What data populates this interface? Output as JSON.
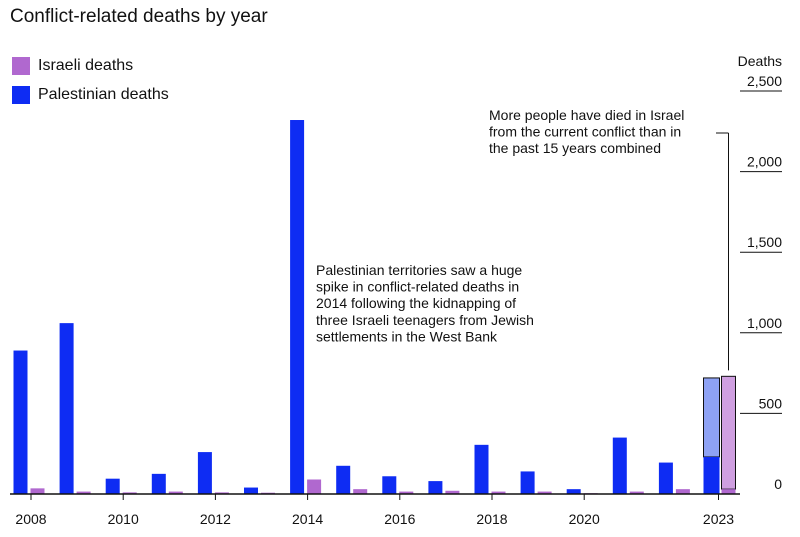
{
  "chart_data": {
    "type": "bar",
    "title": "Conflict-related deaths by year",
    "ylabel": "Deaths",
    "ylim": [
      0,
      2500
    ],
    "yticks": [
      0,
      500,
      1000,
      1500,
      2000,
      2500
    ],
    "ytick_labels": [
      "0",
      "500",
      "1,000",
      "1,500",
      "2,000",
      "2,500"
    ],
    "grid": false,
    "legend_position": "top-left",
    "categories": [
      "2008",
      "2009",
      "2010",
      "2011",
      "2012",
      "2013",
      "2014",
      "2015",
      "2016",
      "2017",
      "2018",
      "2019",
      "2020",
      "2021",
      "2022",
      "2023"
    ],
    "xtick_labels": [
      "2008",
      "2010",
      "2012",
      "2014",
      "2016",
      "2018",
      "2020",
      "2023"
    ],
    "series": [
      {
        "name": "Palestinian deaths",
        "color": "#0e2cf3",
        "values": [
          890,
          1060,
          95,
          125,
          260,
          40,
          2320,
          175,
          110,
          80,
          305,
          140,
          30,
          350,
          195,
          230
        ]
      },
      {
        "name": "Israeli deaths",
        "color": "#b068cf",
        "values": [
          35,
          15,
          10,
          15,
          10,
          8,
          90,
          30,
          15,
          20,
          15,
          15,
          5,
          15,
          30,
          30
        ]
      }
    ],
    "projected_2023": {
      "palestinian_total": 720,
      "israeli_total": 730
    },
    "annotations": [
      {
        "lines": [
          "Palestinian territories saw a huge",
          "spike in conflict-related deaths in",
          "2014 following the kidnapping of",
          "three Israeli teenagers from Jewish",
          "settlements in the West Bank"
        ]
      },
      {
        "lines": [
          "More people have died in Israel",
          "from the current conflict than in",
          "the past 15 years combined"
        ]
      }
    ]
  },
  "colors": {
    "palestinian": "#0e2cf3",
    "palestinian_light": "#8ea2f4",
    "israeli": "#b068cf",
    "israeli_light": "#cf9fe0",
    "axis": "#111111"
  }
}
